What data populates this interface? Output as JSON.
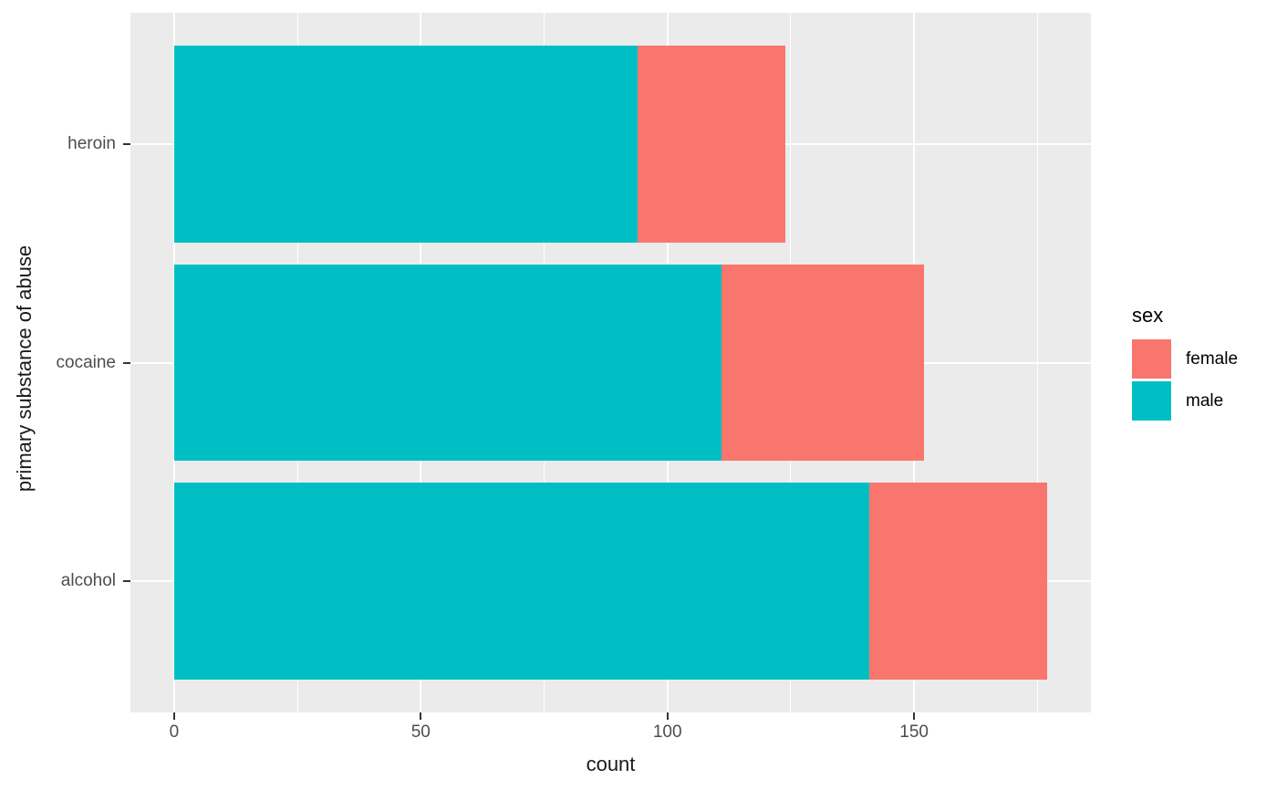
{
  "chart_data": {
    "type": "bar",
    "orientation": "horizontal",
    "stacked": true,
    "title": "",
    "xlabel": "count",
    "ylabel": "primary substance of abuse",
    "categories": [
      "heroin",
      "cocaine",
      "alcohol"
    ],
    "series": [
      {
        "name": "male",
        "color": "#00BFC4",
        "values": [
          94,
          111,
          141
        ]
      },
      {
        "name": "female",
        "color": "#F8766D",
        "values": [
          30,
          41,
          36
        ]
      }
    ],
    "totals": [
      124,
      152,
      177
    ],
    "xlim": [
      -8.85,
      185.85
    ],
    "x_major_ticks": [
      0,
      50,
      100,
      150
    ],
    "x_minor_ticks": [
      25,
      75,
      125,
      175
    ],
    "x_tick_labels": [
      "0",
      "50",
      "100",
      "150"
    ],
    "grid": true,
    "legend": {
      "position": "right",
      "title": "sex",
      "entries": [
        {
          "label": "female",
          "color": "#F8766D"
        },
        {
          "label": "male",
          "color": "#00BFC4"
        }
      ]
    },
    "colors": {
      "panel_bg": "#EBEBEB",
      "grid": "#FFFFFF",
      "axis_text": "#4D4D4D",
      "axis_title": "#1A1A1A",
      "tick_mark": "#333333",
      "page_bg": "#FFFFFF"
    },
    "bar_width_frac": 0.9,
    "category_expand": 0.6
  }
}
